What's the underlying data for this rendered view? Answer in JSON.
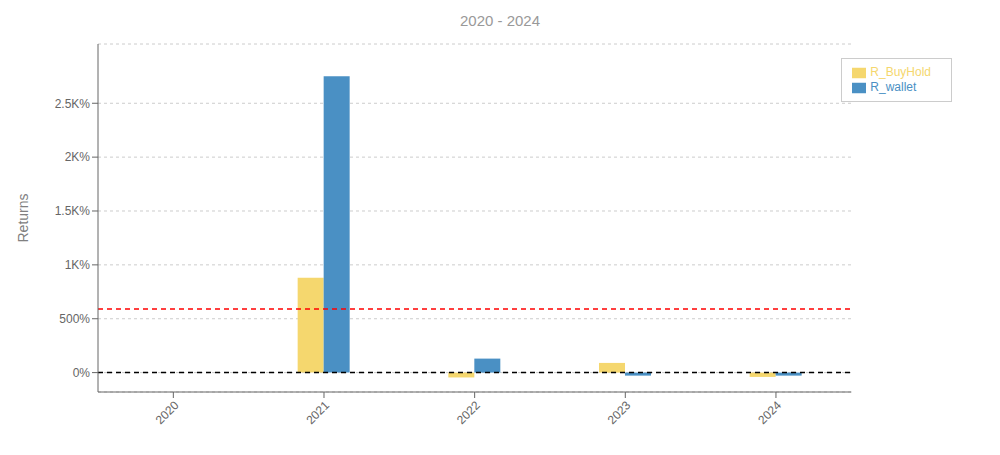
{
  "chart_data": {
    "type": "bar",
    "title": "2020 - 2024",
    "ylabel": "Returns",
    "categories": [
      "2020",
      "2021",
      "2022",
      "2023",
      "2024"
    ],
    "series": [
      {
        "name": "R_BuyHold",
        "color": "#F5D76E",
        "values": [
          0.0,
          8.8,
          -0.45,
          0.9,
          -0.4
        ]
      },
      {
        "name": "R_wallet",
        "color": "#4A90C4",
        "values": [
          0.0,
          27.5,
          1.3,
          -0.28,
          -0.28
        ]
      }
    ],
    "ylim": [
      -1.8,
      30.5
    ],
    "yticks": [
      {
        "value": 0,
        "label": "0%"
      },
      {
        "value": 5,
        "label": "500%"
      },
      {
        "value": 10,
        "label": "1K%"
      },
      {
        "value": 15,
        "label": "1.5K%"
      },
      {
        "value": 20,
        "label": "2K%"
      },
      {
        "value": 25,
        "label": "2.5K%"
      }
    ],
    "grid": true,
    "legend": "upper right",
    "reference_lines": [
      {
        "value": 0.0,
        "color": "black"
      },
      {
        "value": 5.9,
        "color": "red"
      }
    ]
  }
}
